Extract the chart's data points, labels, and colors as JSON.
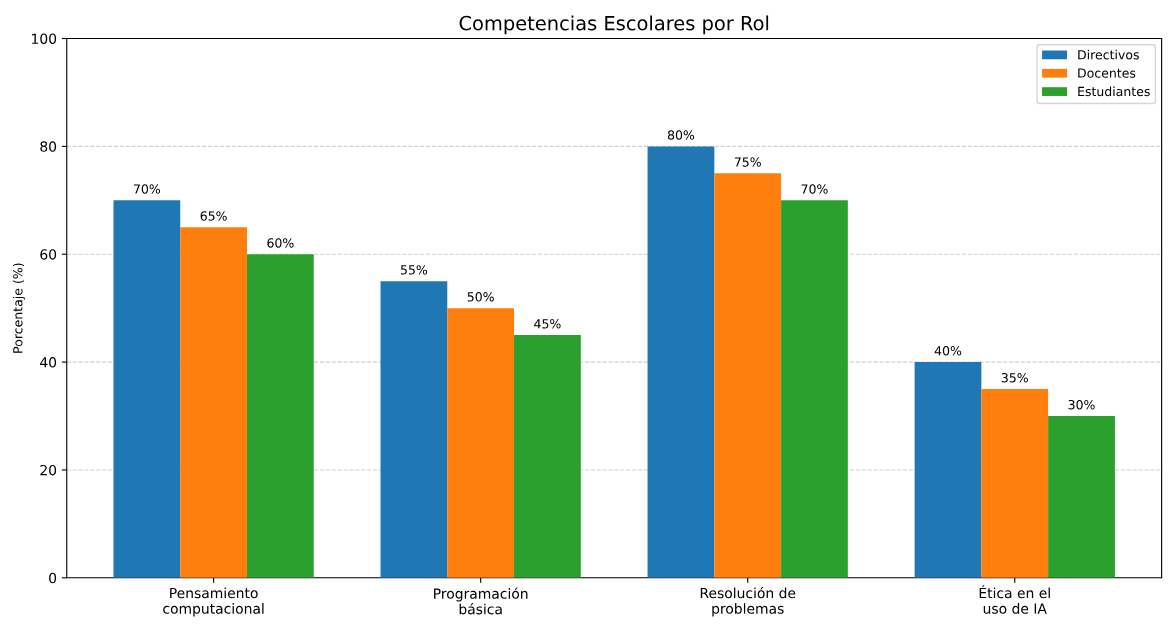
{
  "chart_data": {
    "type": "bar",
    "title": "Competencias Escolares por Rol",
    "ylabel": "Porcentaje (%)",
    "categories": [
      "Pensamiento\ncomputacional",
      "Programación\nbásica",
      "Resolución de\nproblemas",
      "Ética en el\nuso de IA"
    ],
    "series": [
      {
        "name": "Directivos",
        "color": "#1f77b4",
        "values": [
          70,
          55,
          80,
          40
        ],
        "value_labels": [
          "70%",
          "55%",
          "80%",
          "40%"
        ]
      },
      {
        "name": "Docentes",
        "color": "#ff7f0e",
        "values": [
          65,
          50,
          75,
          35
        ],
        "value_labels": [
          "65%",
          "50%",
          "75%",
          "35%"
        ]
      },
      {
        "name": "Estudiantes",
        "color": "#2ca02c",
        "values": [
          60,
          45,
          70,
          30
        ],
        "value_labels": [
          "60%",
          "45%",
          "70%",
          "30%"
        ]
      }
    ],
    "ylim": [
      0,
      100
    ],
    "yticks": [
      0,
      20,
      40,
      60,
      80,
      100
    ],
    "grid": "y",
    "legend": "top right"
  }
}
